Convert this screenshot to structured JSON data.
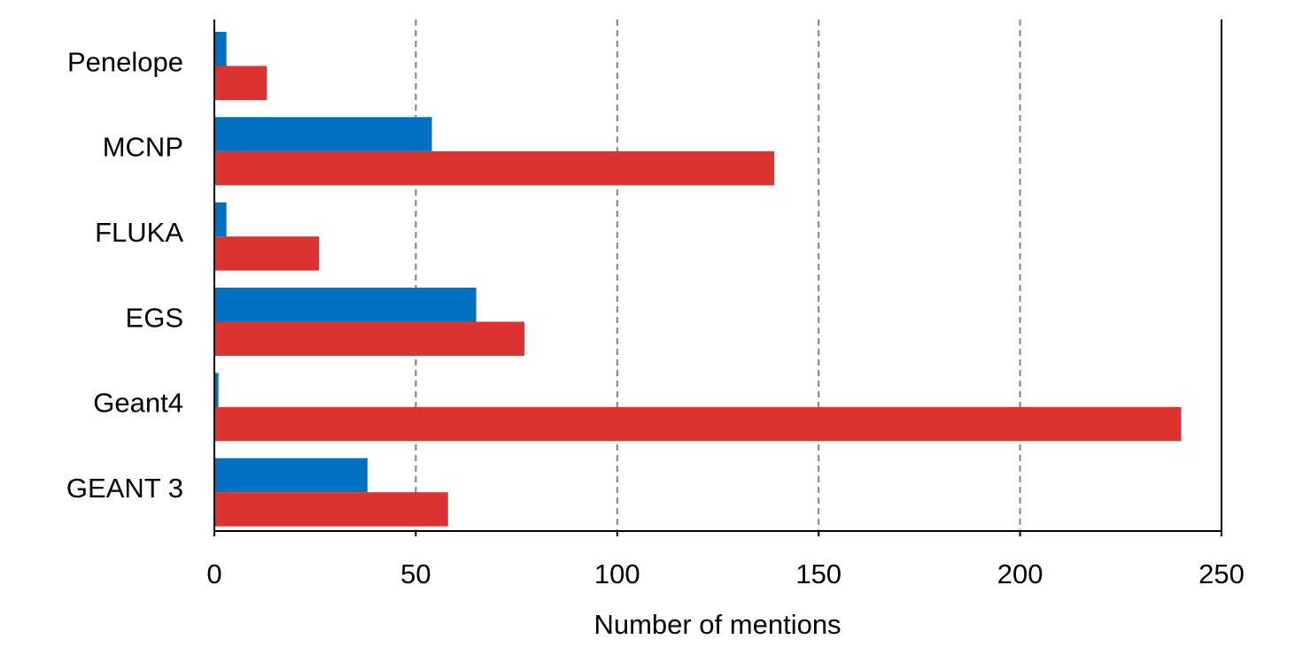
{
  "chart_data": {
    "type": "bar",
    "orientation": "horizontal",
    "xlabel": "Number of mentions",
    "categories": [
      "Penelope",
      "MCNP",
      "FLUKA",
      "EGS",
      "Geant4",
      "GEANT 3"
    ],
    "series": [
      {
        "color": "#0070c0",
        "values": [
          3,
          54,
          3,
          65,
          1,
          38
        ]
      },
      {
        "color": "#dc3232",
        "values": [
          13,
          139,
          26,
          77,
          240,
          58
        ]
      }
    ],
    "xlim": [
      0,
      250
    ],
    "xticks": [
      0,
      50,
      100,
      150,
      200,
      250
    ],
    "grid": true
  }
}
